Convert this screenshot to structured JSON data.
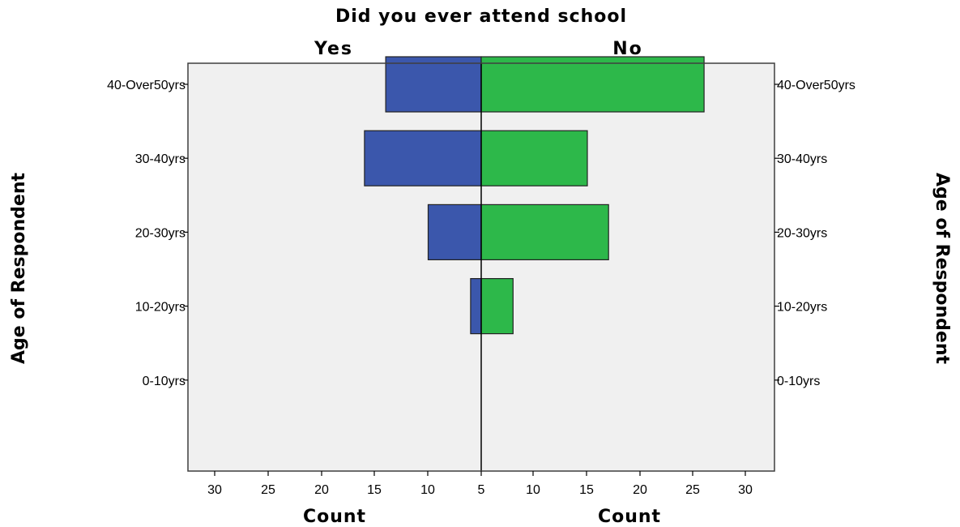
{
  "chart_data": {
    "type": "bar",
    "subtype": "population-pyramid",
    "title": "Did you ever attend school",
    "panels": [
      "Yes",
      "No"
    ],
    "categories": [
      "0-10yrs",
      "10-20yrs",
      "20-30yrs",
      "30-40yrs",
      "40-Over50yrs"
    ],
    "series": [
      {
        "name": "Yes",
        "values": [
          0,
          1,
          5,
          11,
          9
        ],
        "color": "#3b57ac"
      },
      {
        "name": "No",
        "values": [
          0,
          3,
          12,
          10,
          21
        ],
        "color": "#2db84a"
      }
    ],
    "xlabel": "Count",
    "ylabel": "Age of Respondent",
    "x_ticks_left": [
      "30",
      "25",
      "20",
      "15",
      "10",
      "5"
    ],
    "x_ticks_right": [
      "10",
      "15",
      "20",
      "25",
      "30"
    ],
    "xlim": [
      0,
      25
    ],
    "grid": false,
    "legend": "none",
    "plot_background": "#f0f0f0",
    "frame_color": "#3f3f3f"
  }
}
